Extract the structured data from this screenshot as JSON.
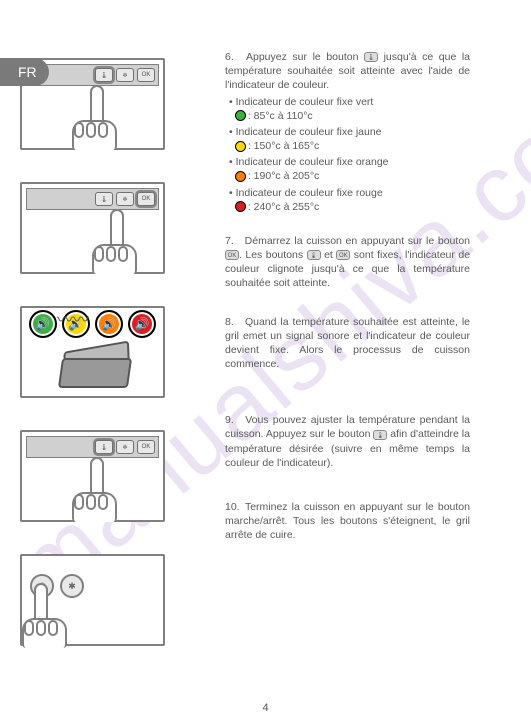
{
  "watermark": "manualshiva.com",
  "lang_badge": "FR",
  "page_number": "4",
  "instructions": {
    "i6": {
      "num": "6.",
      "text": "Appuyez sur le bouton",
      "text2": "jusqu'à ce que la température souhaitée soit atteinte avec l'aide de l'indicateur de couleur.",
      "bullets": [
        {
          "label": "Indicateur de couleur fixe vert",
          "range": ": 85°c à 110°c",
          "color": "#3cb043"
        },
        {
          "label": "Indicateur de couleur fixe jaune",
          "range": ": 150°c à 165°c",
          "color": "#ffd800"
        },
        {
          "label": "Indicateur de couleur fixe orange",
          "range": ": 190°c à 205°c",
          "color": "#ff7f00"
        },
        {
          "label": "Indicateur de couleur fixe rouge",
          "range": ": 240°c à 255°c",
          "color": "#d92020"
        }
      ]
    },
    "i7": {
      "num": "7.",
      "text_a": "Démarrez la cuisson en appuyant sur le bouton",
      "text_b": ". Les boutons",
      "text_c": "et",
      "text_d": "sont fixes, l'indicateur de couleur clignote jusqu'à ce que la température souhaitée soit atteinte."
    },
    "i8": {
      "num": "8.",
      "text": "Quand la température souhaitée est atteinte, le gril emet un signal sonore et l'indicateur de couleur devient fixe. Alors le processus de cuisson commence."
    },
    "i9": {
      "num": "9.",
      "text_a": "Vous pouvez ajuster la température pendant la cuisson. Appuyez sur le bouton",
      "text_b": "afin d'atteindre la température désirée (suivre en même temps la couleur de l'indicateur)."
    },
    "i10": {
      "num": "10.",
      "text": "Terminez la cuisson en appuyant sur le bouton marche/arrêt. Tous les boutons s'éteignent, le gril arrête de cuire."
    }
  },
  "btn_labels": {
    "therm": "🌡",
    "snow": "❄",
    "ok": "OK"
  },
  "sound_colors": [
    "#3cb043",
    "#ffd800",
    "#ff7f00",
    "#d92020"
  ]
}
